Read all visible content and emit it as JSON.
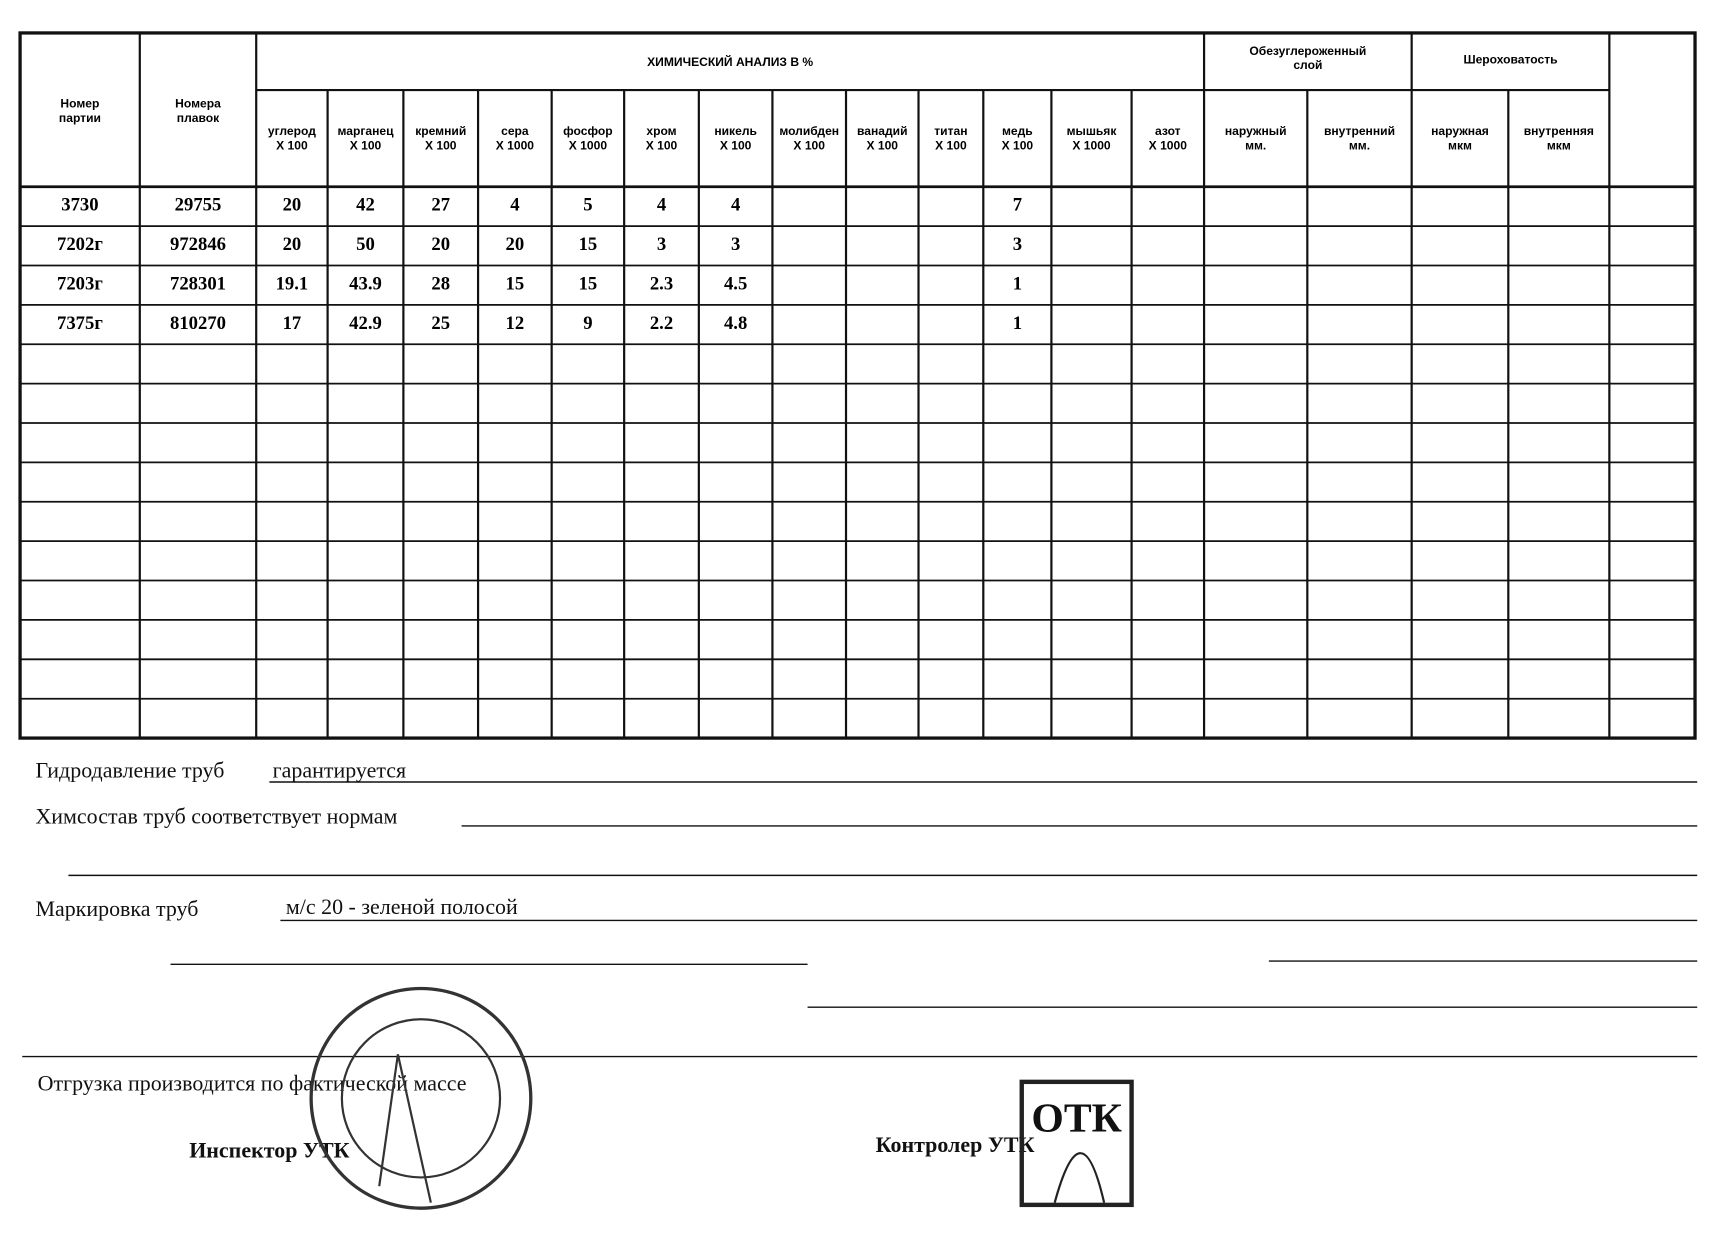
{
  "table": {
    "header": {
      "batch": [
        "Номер",
        "партии"
      ],
      "heats": [
        "Номера",
        "плавок"
      ],
      "chem_group": "ХИМИЧЕСКИЙ АНАЛИЗ В %",
      "decarb_group": [
        "Обезуглероженный",
        "слой"
      ],
      "rough_group": "Шероховатость"
    },
    "columns": [
      [
        "углерод",
        "X 100"
      ],
      [
        "марганец",
        "X 100"
      ],
      [
        "кремний",
        "X 100"
      ],
      [
        "сера",
        "X 1000"
      ],
      [
        "фосфор",
        "X 1000"
      ],
      [
        "хром",
        "X 100"
      ],
      [
        "никель",
        "X 100"
      ],
      [
        "молибден",
        "X 100"
      ],
      [
        "ванадий",
        "X 100"
      ],
      [
        "титан",
        "X 100"
      ],
      [
        "медь",
        "X 100"
      ],
      [
        "мышьяк",
        "X 1000"
      ],
      [
        "азот",
        "X 1000"
      ],
      [
        "наружный",
        "мм."
      ],
      [
        "внутренний",
        "мм."
      ],
      [
        "наружная",
        "мкм"
      ],
      [
        "внутренняя",
        "мкм"
      ]
    ],
    "rows": [
      {
        "batch": "3730",
        "heat": 29755,
        "cells": {
          "0": 20,
          "1": 42,
          "2": 27,
          "3": 4,
          "4": 5,
          "5": 4,
          "6": 4,
          "10": 7
        }
      },
      {
        "batch": "7202г",
        "heat": 972846,
        "cells": {
          "0": 20,
          "1": 50,
          "2": 20,
          "3": 20,
          "4": 15,
          "5": 3,
          "6": 3,
          "10": 3
        }
      },
      {
        "batch": "7203г",
        "heat": 728301,
        "cells": {
          "0": 19.1,
          "1": 43.9,
          "2": 28,
          "3": 15,
          "4": 15,
          "5": 2.3,
          "6": 4.5,
          "10": 1
        }
      },
      {
        "batch": "7375г",
        "heat": 810270,
        "cells": {
          "0": 17,
          "1": 42.9,
          "2": 25,
          "3": 12,
          "4": 9,
          "5": 2.2,
          "6": 4.8,
          "10": 1
        }
      }
    ]
  },
  "footer": {
    "hydro": {
      "label": "Гидродавление труб",
      "value": "гарантируется"
    },
    "chem": "Химсостав труб соответствует нормам",
    "marking": {
      "label": "Маркировка труб",
      "value": "м/с 20 - зеленой полосой"
    },
    "shipment": "Отгрузка производится по фактической массе",
    "inspector": "Инспектор УТК",
    "controller": "Контролер УТК",
    "stamp": "ОТК"
  }
}
